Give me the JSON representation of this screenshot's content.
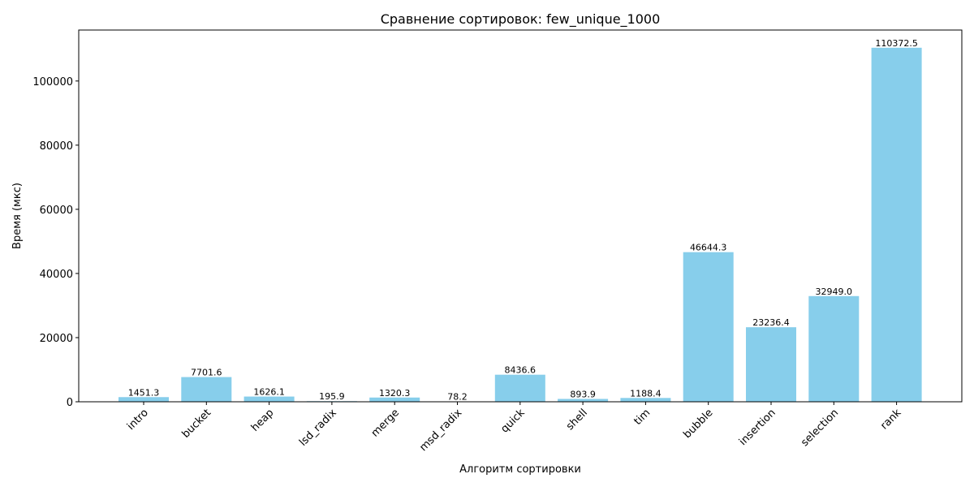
{
  "chart_data": {
    "type": "bar",
    "title": "Сравнение сортировок: few_unique_1000",
    "xlabel": "Алгоритм сортировки",
    "ylabel": "Время (мкс)",
    "categories": [
      "intro",
      "bucket",
      "heap",
      "lsd_radix",
      "merge",
      "msd_radix",
      "quick",
      "shell",
      "tim",
      "bubble",
      "insertion",
      "selection",
      "rank"
    ],
    "values": [
      1451.3,
      7701.6,
      1626.1,
      195.9,
      1320.3,
      78.2,
      8436.6,
      893.9,
      1188.4,
      46644.3,
      23236.4,
      32949.0,
      110372.5
    ],
    "value_labels": [
      "1451.3",
      "7701.6",
      "1626.1",
      "195.9",
      "1320.3",
      "78.2",
      "8436.6",
      "893.9",
      "1188.4",
      "46644.3",
      "23236.4",
      "32949.0",
      "110372.5"
    ],
    "yticks": [
      0,
      20000,
      40000,
      60000,
      80000,
      100000
    ],
    "ylim": [
      0,
      115891
    ],
    "bar_color": "#87ceeb",
    "grid": false,
    "legend": false
  }
}
